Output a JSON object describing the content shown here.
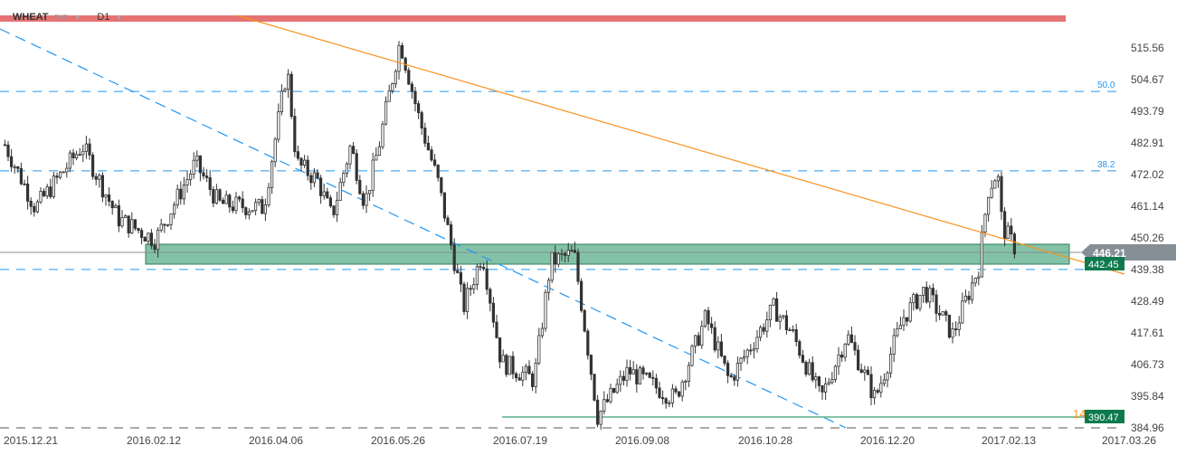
{
  "header": {
    "symbol": "WHEAT",
    "type": "CMD",
    "timeframe": "D1"
  },
  "chart_data": {
    "type": "candlestick",
    "y_ticks": [
      "515.56",
      "504.67",
      "493.79",
      "482.91",
      "472.02",
      "461.14",
      "450.26",
      "439.38",
      "428.49",
      "417.61",
      "406.73",
      "395.84",
      "384.96"
    ],
    "x_ticks": [
      "2015.12.21",
      "2016.02.12",
      "2016.04.06",
      "2016.05.26",
      "2016.07.19",
      "2016.09.08",
      "2016.10.28",
      "2016.12.20",
      "2017.02.13",
      "2017.03.26"
    ],
    "ylim": [
      384.96,
      515.56
    ],
    "closes_approx": [
      [
        "2015-12-10",
        482.3
      ],
      [
        "2015-12-23",
        460.5
      ],
      [
        "2016-01-12",
        482
      ],
      [
        "2016-01-27",
        457
      ],
      [
        "2016-02-12",
        449.6
      ],
      [
        "2016-02-29",
        476
      ],
      [
        "2016-03-10",
        462
      ],
      [
        "2016-03-29",
        460.5
      ],
      [
        "2016-04-08",
        508.7
      ],
      [
        "2016-04-12",
        476
      ],
      [
        "2016-04-21",
        470
      ],
      [
        "2016-04-27",
        457.4
      ],
      [
        "2016-05-05",
        482
      ],
      [
        "2016-05-11",
        462
      ],
      [
        "2016-05-17",
        482
      ],
      [
        "2016-05-26",
        518
      ],
      [
        "2016-06-03",
        491.6
      ],
      [
        "2016-06-11",
        470
      ],
      [
        "2016-06-19",
        438.8
      ],
      [
        "2016-06-22",
        426.3
      ],
      [
        "2016-06-30",
        445
      ],
      [
        "2016-07-08",
        407.7
      ],
      [
        "2016-07-22",
        401.4
      ],
      [
        "2016-07-29",
        441.9
      ],
      [
        "2016-08-08",
        445
      ],
      [
        "2016-08-18",
        389
      ],
      [
        "2016-08-31",
        404.6
      ],
      [
        "2016-09-20",
        395
      ],
      [
        "2016-10-03",
        423
      ],
      [
        "2016-10-13",
        401
      ],
      [
        "2016-11-01",
        426.3
      ],
      [
        "2016-11-09",
        417
      ],
      [
        "2016-11-21",
        395
      ],
      [
        "2016-12-02",
        417
      ],
      [
        "2016-12-14",
        395
      ],
      [
        "2016-12-26",
        423
      ],
      [
        "2017-01-04",
        432.5
      ],
      [
        "2017-01-16",
        417
      ],
      [
        "2017-01-27",
        440.3
      ],
      [
        "2017-01-31",
        466.7
      ],
      [
        "2017-02-04",
        473
      ],
      [
        "2017-02-06",
        454.3
      ],
      [
        "2017-02-12",
        446.2
      ]
    ],
    "levels": {
      "fib_50": {
        "label": "50.0",
        "price": 500.6
      },
      "fib_38": {
        "label": "38.2",
        "price": 473.3
      },
      "support_dashed": 439.4,
      "bottom_dashed": 384.96,
      "low_line": 390.47
    },
    "zone": {
      "from": 441.6,
      "to": 448.6
    },
    "current_price": "446.21",
    "zone_label": "442.45",
    "low_label": "390.47",
    "partial_label": "14",
    "colors": {
      "up": "#333333",
      "down": "#333333",
      "zone": "#5aae8a",
      "label_green": "#0d7a4e",
      "orange": "#f7931e",
      "blue": "#2196f3",
      "red": "#e57373",
      "current": "#868e96"
    }
  }
}
